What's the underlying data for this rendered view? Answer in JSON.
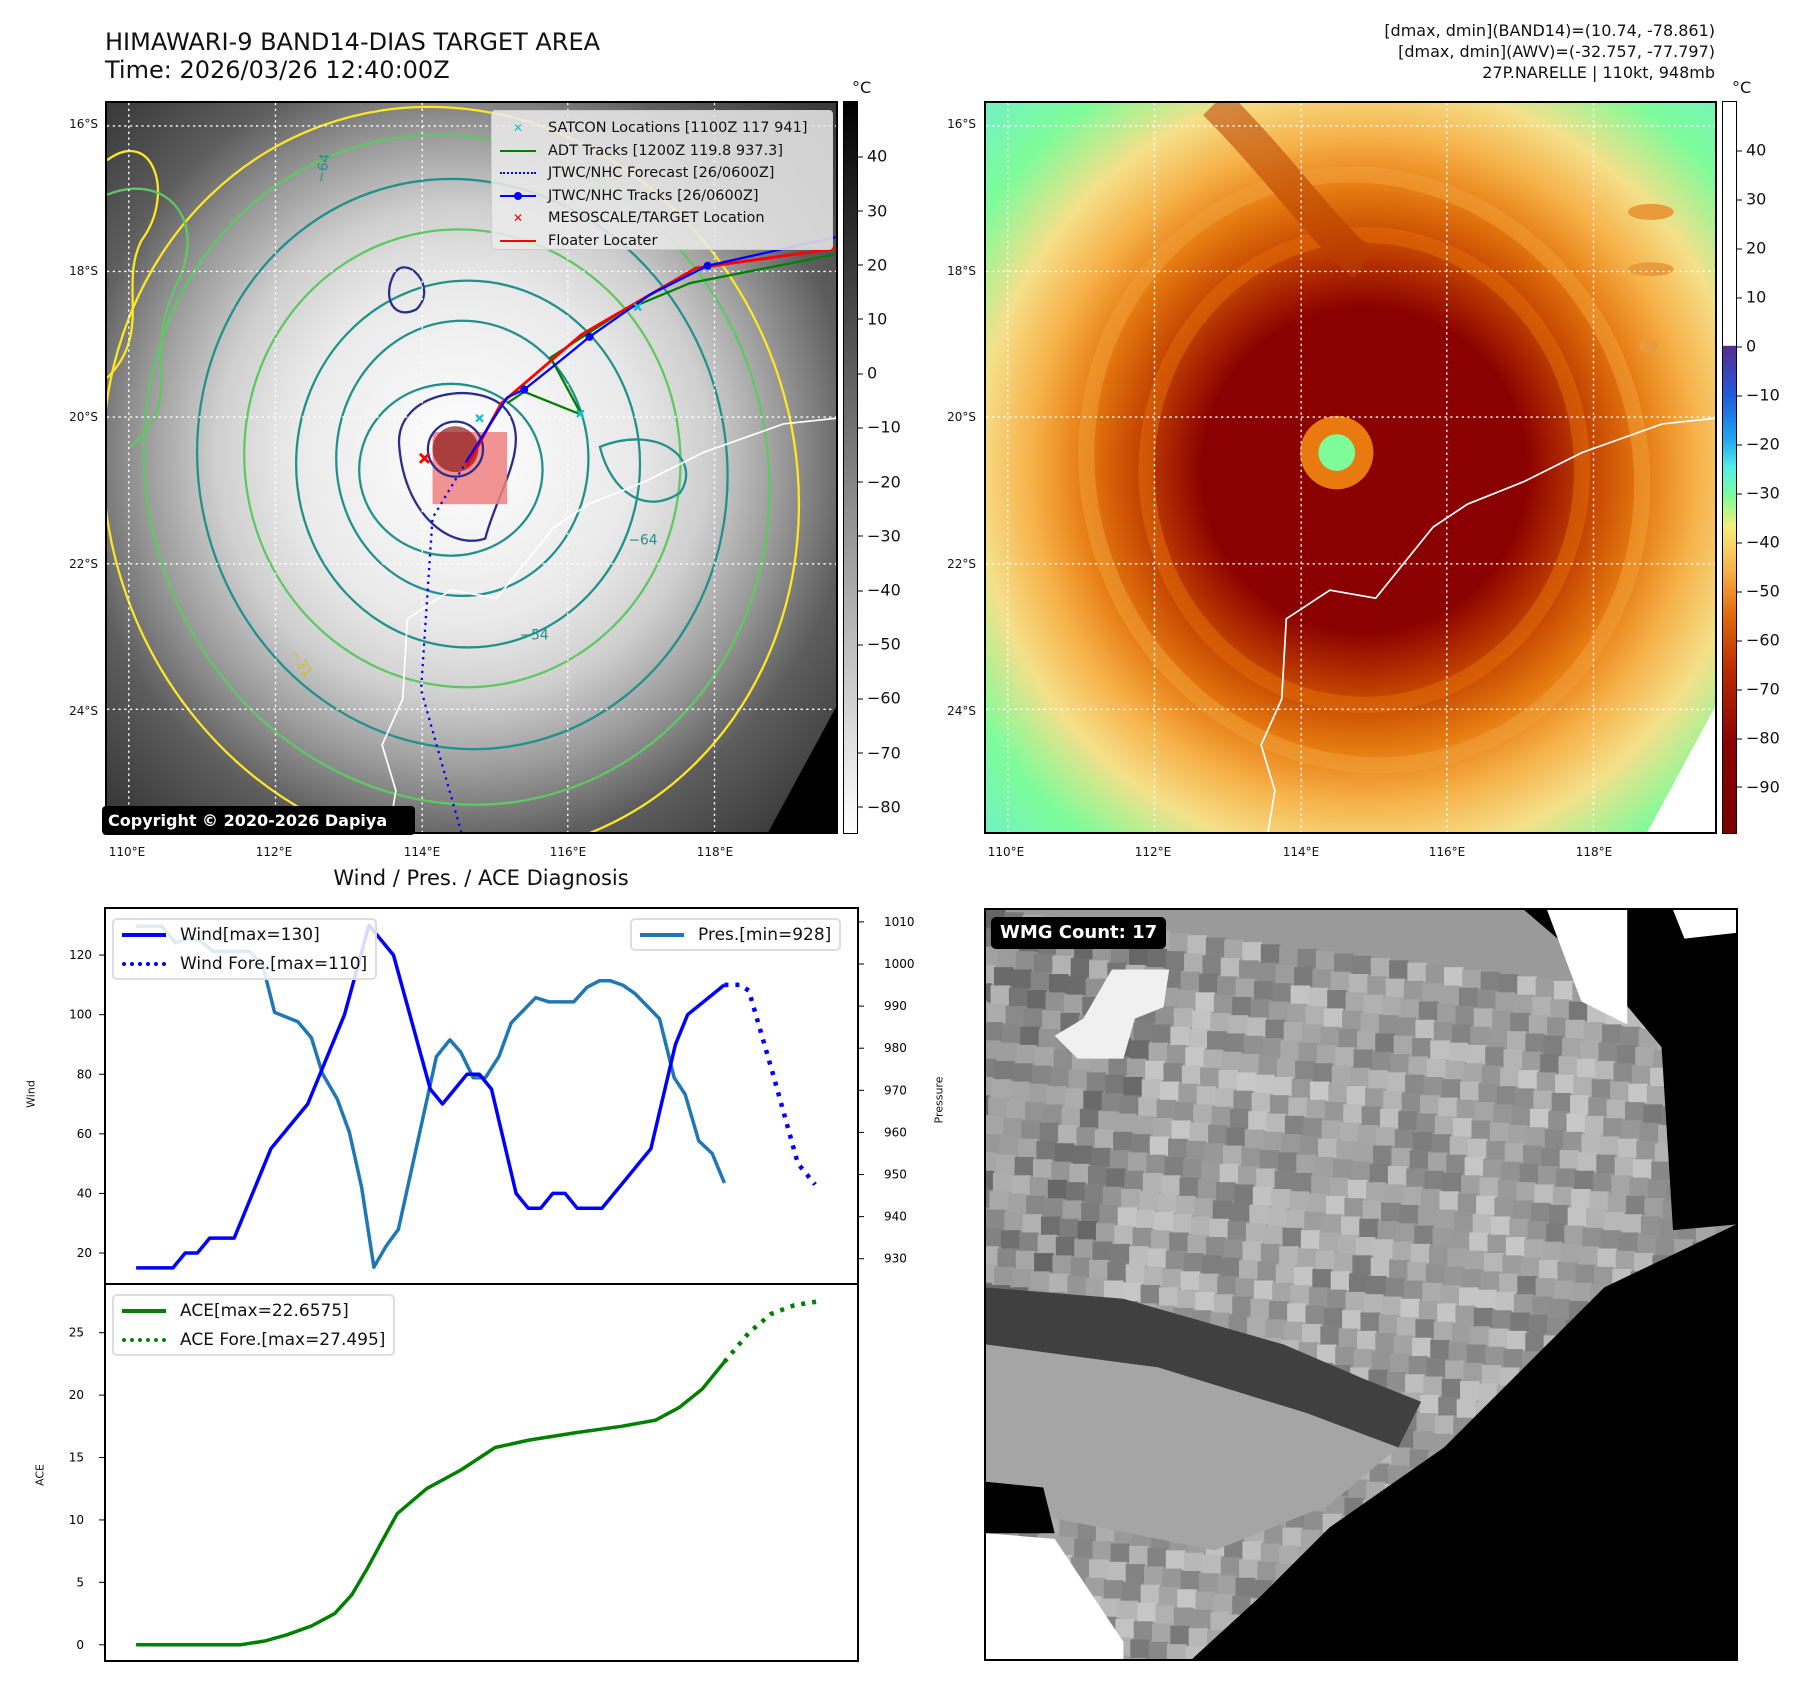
{
  "header": {
    "title": "HIMAWARI-9 BAND14-DIAS TARGET AREA",
    "time": "Time: 2026/03/26 12:40:00Z"
  },
  "stats": {
    "band14": "[dmax, dmin](BAND14)=(10.74, -78.861)",
    "awv": "[dmax, dmin](AWV)=(-32.757, -77.797)",
    "storm": "27P.NARELLE | 110kt, 948mb"
  },
  "maps": {
    "lat_labels": [
      "16°S",
      "18°S",
      "20°S",
      "22°S",
      "24°S"
    ],
    "lon_labels": [
      "110°E",
      "112°E",
      "114°E",
      "116°E",
      "118°E"
    ],
    "colorbar_unit": "°C",
    "band14_colorbar_ticks": [
      "40",
      "30",
      "20",
      "10",
      "0",
      "−10",
      "−20",
      "−30",
      "−40",
      "−50",
      "−60",
      "−70",
      "−80"
    ],
    "awv_colorbar_ticks": [
      "40",
      "30",
      "20",
      "10",
      "0",
      "−10",
      "−20",
      "−30",
      "−40",
      "−50",
      "−60",
      "−70",
      "−80",
      "−90"
    ],
    "contour_labels": [
      "−64",
      "−54",
      "−31"
    ],
    "copyright": "Copyright © 2020-2026 Dapiya",
    "colors": {
      "contour_navy": "#2b2d8c",
      "contour_teal": "#21918c",
      "contour_green": "#5ec962",
      "contour_yellow": "#fde725"
    }
  },
  "legend": {
    "items": [
      {
        "label": "SATCON Locations [1100Z 117 941]",
        "color": "#17becf",
        "style": "x-marker"
      },
      {
        "label": "ADT Tracks [1200Z 119.8 937.3]",
        "color": "#008000",
        "style": "line"
      },
      {
        "label": "JTWC/NHC Forecast [26/0600Z]",
        "color": "#0000ff",
        "style": "dotted"
      },
      {
        "label": "JTWC/NHC Tracks [26/0600Z]",
        "color": "#0000ff",
        "style": "line-dot"
      },
      {
        "label": "MESOSCALE/TARGET Location",
        "color": "#ff0000",
        "style": "x-marker"
      },
      {
        "label": "Floater Locater",
        "color": "#ff0000",
        "style": "line"
      }
    ]
  },
  "wmg": {
    "label": "WMG Count: 17"
  },
  "chart_data": {
    "type": "line",
    "title": "Wind / Pres. / ACE Diagnosis",
    "panels": [
      {
        "name": "wind-pressure",
        "ylabel": "Wind",
        "y2label": "Pressure",
        "ylim": [
          9.6,
          135.8
        ],
        "y2lim": [
          924,
          1013.3
        ],
        "xlim": [
          -2.54,
          58.9
        ],
        "yticks": [
          20,
          40,
          60,
          80,
          100,
          120
        ],
        "y2ticks": [
          930,
          940,
          950,
          960,
          970,
          980,
          990,
          1000,
          1010
        ],
        "series": [
          {
            "name": "Wind[max=130]",
            "axis": "left",
            "color": "#0000ff",
            "style": "solid",
            "x": [
              0,
              3,
              4,
              5,
              6,
              8,
              11,
              14,
              17,
              19,
              21,
              24,
              25,
              27,
              28,
              29,
              31,
              32,
              33,
              34,
              35,
              36,
              38,
              42,
              44,
              45,
              48
            ],
            "y": [
              15,
              15,
              20,
              20,
              25,
              25,
              55,
              70,
              100,
              130,
              120,
              75,
              70,
              80,
              80,
              75,
              40,
              35,
              35,
              40,
              40,
              35,
              35,
              55,
              90,
              100,
              110
            ]
          },
          {
            "name": "Wind Fore.[max=110]",
            "axis": "left",
            "color": "#0000ff",
            "style": "dotted",
            "x": [
              48,
              49.3,
              50,
              51.9,
              54,
              55.4
            ],
            "y": [
              110,
              110,
              108,
              81,
              50,
              43
            ]
          },
          {
            "name": "Pres.[min=928]",
            "axis": "right",
            "color": "#1f77b4",
            "style": "solid",
            "x": [
              0,
              2.1,
              3.2,
              4.2,
              5.2,
              6.3,
              9.2,
              10.3,
              11.3,
              13.2,
              14.3,
              15.2,
              16.4,
              17.4,
              18.4,
              19.4,
              20.4,
              21.4,
              24.5,
              25.6,
              26.5,
              27.5,
              28.5,
              29.6,
              30.6,
              32.6,
              33.7,
              35.7,
              36.8,
              37.8,
              38.7,
              39.7,
              40.7,
              42.7,
              43.9,
              44.8,
              45.9,
              47,
              48
            ],
            "y": [
              1009,
              1009,
              1005,
              1006,
              1005.5,
              1003,
              1003,
              1000,
              988.5,
              986.3,
              982.5,
              974,
              968,
              960,
              947,
              928,
              933,
              937,
              978,
              982,
              979,
              973,
              973,
              978,
              986,
              992,
              991,
              991,
              994.5,
              996,
              996,
              995,
              993,
              987,
              973,
              969,
              958,
              955,
              948
            ]
          }
        ]
      },
      {
        "name": "ace",
        "ylabel": "ACE",
        "ylim": [
          -1.3,
          28.9
        ],
        "xlim": [
          -2.54,
          58.9
        ],
        "yticks": [
          0,
          5,
          10,
          15,
          20,
          25
        ],
        "series": [
          {
            "name": "ACE[max=22.6575]",
            "color": "#008000",
            "style": "solid",
            "x": [
              0,
              8.5,
              10.5,
              12.3,
              14.3,
              16.2,
              17.6,
              18.8,
              19.9,
              21.3,
              23.7,
              26.5,
              29.3,
              32.1,
              35.9,
              39.6,
              42.4,
              44.3,
              46.2,
              48
            ],
            "y": [
              0,
              0,
              0.3,
              0.8,
              1.5,
              2.5,
              4,
              6,
              8,
              10.5,
              12.5,
              14,
              15.8,
              16.4,
              17,
              17.5,
              18,
              19,
              20.5,
              22.66
            ]
          },
          {
            "name": "ACE Fore.[max=27.495]",
            "color": "#008000",
            "style": "dotted",
            "x": [
              48,
              50,
              51.8,
              53.7,
              55.6
            ],
            "y": [
              22.66,
              25,
              26.5,
              27.2,
              27.5
            ]
          }
        ]
      }
    ]
  }
}
